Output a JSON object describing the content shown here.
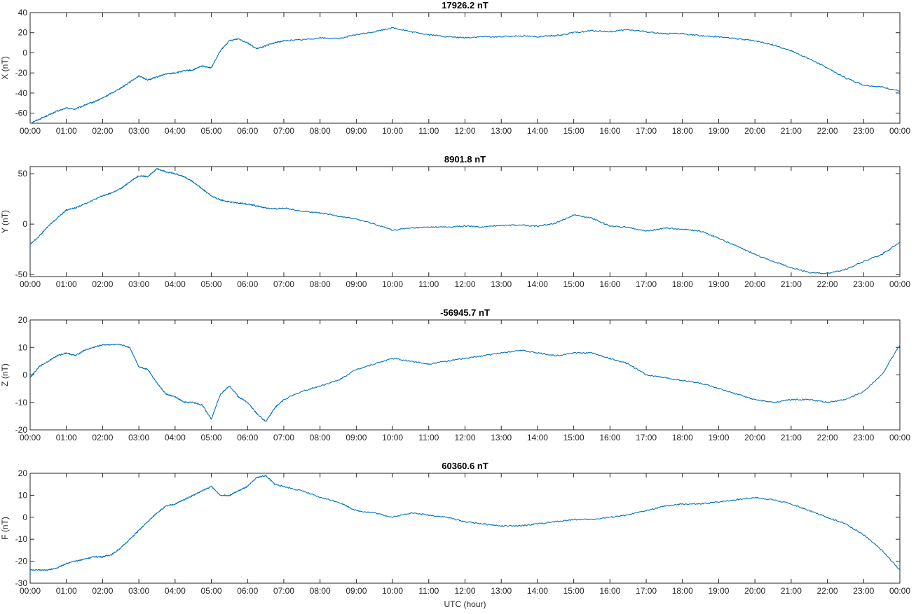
{
  "colors": {
    "line": "#0072bd",
    "axis": "#262626",
    "background": "#ffffff"
  },
  "xlabel": "UTC (hour)",
  "x_ticks": [
    "00:00",
    "01:00",
    "02:00",
    "03:00",
    "04:00",
    "05:00",
    "06:00",
    "07:00",
    "08:00",
    "09:00",
    "10:00",
    "11:00",
    "12:00",
    "13:00",
    "14:00",
    "15:00",
    "16:00",
    "17:00",
    "18:00",
    "19:00",
    "20:00",
    "21:00",
    "22:00",
    "23:00",
    "00:00"
  ],
  "chart_data": [
    {
      "type": "line",
      "title": "17926.2 nT",
      "ylabel": "X (nT)",
      "xlim": [
        0,
        24
      ],
      "ylim": [
        -70,
        40
      ],
      "yticks": [
        -60,
        -40,
        -20,
        0,
        20,
        40
      ],
      "grid": false,
      "series": [
        {
          "x": [
            0,
            0.25,
            0.5,
            0.75,
            1,
            1.25,
            1.5,
            1.75,
            2,
            2.25,
            2.5,
            2.75,
            3,
            3.25,
            3.5,
            3.75,
            4,
            4.25,
            4.5,
            4.75,
            5,
            5.25,
            5.5,
            5.75,
            6,
            6.25,
            6.5,
            6.75,
            7,
            7.5,
            8,
            8.5,
            9,
            9.5,
            10,
            10.5,
            11,
            11.5,
            12,
            12.5,
            13,
            13.5,
            14,
            14.5,
            15,
            15.5,
            16,
            16.5,
            17,
            17.5,
            18,
            18.5,
            19,
            19.5,
            20,
            20.5,
            21,
            21.5,
            22,
            22.5,
            23,
            23.5,
            24
          ],
          "y": [
            -70,
            -66,
            -62,
            -58,
            -55,
            -56,
            -52,
            -49,
            -45,
            -40,
            -35,
            -29,
            -23,
            -27,
            -24,
            -21,
            -20,
            -18,
            -17,
            -13,
            -15,
            2,
            12,
            14,
            10,
            4,
            7,
            10,
            12,
            13,
            15,
            14,
            18,
            21,
            25,
            21,
            18,
            16,
            15,
            16,
            16,
            17,
            16,
            17,
            20,
            22,
            21,
            23,
            21,
            19,
            19,
            17,
            16,
            14,
            12,
            8,
            2,
            -6,
            -15,
            -25,
            -32,
            -34,
            -38
          ]
        }
      ]
    },
    {
      "type": "line",
      "title": "8901.8 nT",
      "ylabel": "Y (nT)",
      "xlim": [
        0,
        24
      ],
      "ylim": [
        -52,
        57
      ],
      "yticks": [
        -50,
        0,
        50
      ],
      "grid": false,
      "series": [
        {
          "x": [
            0,
            0.25,
            0.5,
            0.75,
            1,
            1.25,
            1.5,
            1.75,
            2,
            2.25,
            2.5,
            2.75,
            3,
            3.25,
            3.5,
            3.75,
            4,
            4.25,
            4.5,
            4.75,
            5,
            5.25,
            5.5,
            5.75,
            6,
            6.25,
            6.5,
            6.75,
            7,
            7.5,
            8,
            8.5,
            9,
            9.5,
            10,
            10.5,
            11,
            11.5,
            12,
            12.5,
            13,
            13.5,
            14,
            14.5,
            15,
            15.5,
            16,
            16.5,
            17,
            17.5,
            18,
            18.5,
            19,
            19.5,
            20,
            20.5,
            21,
            21.5,
            22,
            22.5,
            23,
            23.5,
            24
          ],
          "y": [
            -20,
            -12,
            -2,
            6,
            14,
            16,
            20,
            24,
            28,
            31,
            35,
            42,
            48,
            47,
            55,
            52,
            50,
            47,
            42,
            35,
            28,
            24,
            22,
            21,
            20,
            18,
            16,
            15,
            16,
            13,
            11,
            8,
            5,
            0,
            -6,
            -4,
            -3,
            -3,
            -2,
            -3,
            -1,
            -1,
            -2,
            1,
            9,
            6,
            -2,
            -3,
            -7,
            -4,
            -5,
            -7,
            -14,
            -22,
            -30,
            -37,
            -43,
            -48,
            -49,
            -45,
            -37,
            -30,
            -18
          ]
        }
      ]
    },
    {
      "type": "line",
      "title": "-56945.7 nT",
      "ylabel": "Z (nT)",
      "xlim": [
        0,
        24
      ],
      "ylim": [
        -20,
        20
      ],
      "yticks": [
        -20,
        -10,
        0,
        10,
        20
      ],
      "grid": false,
      "series": [
        {
          "x": [
            0,
            0.25,
            0.5,
            0.75,
            1,
            1.25,
            1.5,
            1.75,
            2,
            2.25,
            2.5,
            2.75,
            3,
            3.25,
            3.5,
            3.75,
            4,
            4.25,
            4.5,
            4.75,
            5,
            5.25,
            5.5,
            5.75,
            6,
            6.25,
            6.5,
            6.75,
            7,
            7.5,
            8,
            8.5,
            9,
            9.5,
            10,
            10.5,
            11,
            11.5,
            12,
            12.5,
            13,
            13.5,
            14,
            14.5,
            15,
            15.5,
            16,
            16.5,
            17,
            17.5,
            18,
            18.5,
            19,
            19.5,
            20,
            20.5,
            21,
            21.5,
            22,
            22.5,
            23,
            23.5,
            24
          ],
          "y": [
            -1,
            3,
            5,
            7,
            8,
            7,
            9,
            10,
            11,
            11,
            11,
            10,
            3,
            2,
            -3,
            -7,
            -8,
            -10,
            -10,
            -11,
            -16,
            -7,
            -4,
            -8,
            -10,
            -14,
            -17,
            -12,
            -9,
            -6,
            -4,
            -2,
            2,
            4,
            6,
            5,
            4,
            5,
            6,
            7,
            8,
            9,
            8,
            7,
            8,
            8,
            6,
            4,
            0,
            -1,
            -2,
            -3,
            -5,
            -7,
            -9,
            -10,
            -9,
            -9,
            -10,
            -9,
            -6,
            0,
            11
          ]
        }
      ]
    },
    {
      "type": "line",
      "title": "60360.6 nT",
      "ylabel": "F (nT)",
      "xlim": [
        0,
        24
      ],
      "ylim": [
        -30,
        20
      ],
      "yticks": [
        -30,
        -20,
        -10,
        0,
        10,
        20
      ],
      "grid": false,
      "series": [
        {
          "x": [
            0,
            0.25,
            0.5,
            0.75,
            1,
            1.25,
            1.5,
            1.75,
            2,
            2.25,
            2.5,
            2.75,
            3,
            3.25,
            3.5,
            3.75,
            4,
            4.25,
            4.5,
            4.75,
            5,
            5.25,
            5.5,
            5.75,
            6,
            6.25,
            6.5,
            6.75,
            7,
            7.5,
            8,
            8.5,
            9,
            9.5,
            10,
            10.5,
            11,
            11.5,
            12,
            12.5,
            13,
            13.5,
            14,
            14.5,
            15,
            15.5,
            16,
            16.5,
            17,
            17.5,
            18,
            18.5,
            19,
            19.5,
            20,
            20.5,
            21,
            21.5,
            22,
            22.5,
            23,
            23.5,
            24
          ],
          "y": [
            -24,
            -24,
            -24,
            -23,
            -21,
            -20,
            -19,
            -18,
            -18,
            -17,
            -14,
            -10,
            -6,
            -2,
            2,
            5,
            6,
            8,
            10,
            12,
            14,
            10,
            10,
            12,
            14,
            18,
            19,
            15,
            14,
            12,
            9,
            7,
            3,
            2,
            0,
            2,
            1,
            0,
            -2,
            -3,
            -4,
            -4,
            -3,
            -2,
            -1,
            -1,
            0,
            1,
            3,
            5,
            6,
            6,
            7,
            8,
            9,
            8,
            6,
            3,
            0,
            -3,
            -8,
            -15,
            -24
          ]
        }
      ]
    }
  ]
}
